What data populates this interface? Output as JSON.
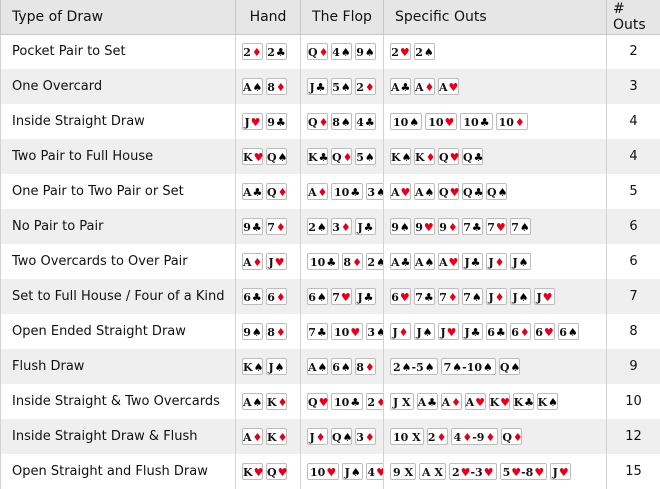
{
  "headers": {
    "draw": "Type of Draw",
    "hand": "Hand",
    "flop": "The Flop",
    "outs": "Specific Outs",
    "count": "# Outs"
  },
  "rows": [
    {
      "draw": "Pocket Pair to Set",
      "hand": [
        "2d",
        "2c"
      ],
      "flop": [
        "Qd",
        "4s",
        "9s"
      ],
      "outs": [
        "2h",
        "2s"
      ],
      "count": "2"
    },
    {
      "draw": "One Overcard",
      "hand": [
        "As",
        "8d"
      ],
      "flop": [
        "Jc",
        "5s",
        "2d"
      ],
      "outs": [
        "Ac",
        "Ad",
        "Ah"
      ],
      "count": "3"
    },
    {
      "draw": "Inside Straight Draw",
      "hand": [
        "Jh",
        "9c"
      ],
      "flop": [
        "Qd",
        "8s",
        "4c"
      ],
      "outs": [
        "10s",
        "10h",
        "10c",
        "10d"
      ],
      "count": "4"
    },
    {
      "draw": "Two Pair to Full House",
      "hand": [
        "Kh",
        "Qs"
      ],
      "flop": [
        "Kc",
        "Qd",
        "5s"
      ],
      "outs": [
        "Ks",
        "Kd",
        "Qh",
        "Qc"
      ],
      "count": "4"
    },
    {
      "draw": "One Pair to Two Pair or Set",
      "hand": [
        "Ac",
        "Qd"
      ],
      "flop": [
        "Ad",
        "10c",
        "3s"
      ],
      "outs": [
        "Ah",
        "As",
        "Qh",
        "Qc",
        "Qs"
      ],
      "count": "5"
    },
    {
      "draw": "No Pair to Pair",
      "hand": [
        "9c",
        "7d"
      ],
      "flop": [
        "2s",
        "3d",
        "Jc"
      ],
      "outs": [
        "9s",
        "9h",
        "9d",
        "7c",
        "7h",
        "7s"
      ],
      "count": "6"
    },
    {
      "draw": "Two Overcards to Over Pair",
      "hand": [
        "Ad",
        "Jh"
      ],
      "flop": [
        "10c",
        "8d",
        "2s"
      ],
      "outs": [
        "Ac",
        "As",
        "Ah",
        "Jc",
        "Jd",
        "Js"
      ],
      "count": "6"
    },
    {
      "draw": "Set to Full House / Four of a Kind",
      "hand": [
        "6c",
        "6d"
      ],
      "flop": [
        "6s",
        "7h",
        "Jc"
      ],
      "outs": [
        "6h",
        "7c",
        "7d",
        "7s",
        "Jd",
        "Js",
        "Jh"
      ],
      "count": "7"
    },
    {
      "draw": "Open Ended Straight Draw",
      "hand": [
        "9s",
        "8d"
      ],
      "flop": [
        "7c",
        "10h",
        "3s"
      ],
      "outs": [
        "Jd",
        "Js",
        "Jh",
        "Jc",
        "6c",
        "6d",
        "6h",
        "6s"
      ],
      "count": "8"
    },
    {
      "draw": "Flush Draw",
      "hand": [
        "Ks",
        "Js"
      ],
      "flop": [
        "As",
        "6s",
        "8d"
      ],
      "outs": [
        "2s-5s",
        "7s-10s",
        "Qs"
      ],
      "count": "9"
    },
    {
      "draw": "Inside Straight & Two Overcards",
      "hand": [
        "As",
        "Kd"
      ],
      "flop": [
        "Qh",
        "10c",
        "2d"
      ],
      "outs": [
        "JX",
        "Ac",
        "Ad",
        "Ah",
        "Kh",
        "Kc",
        "Ks"
      ],
      "count": "10"
    },
    {
      "draw": "Inside Straight Draw & Flush",
      "hand": [
        "Ad",
        "Kd"
      ],
      "flop": [
        "Jd",
        "Qs",
        "3d"
      ],
      "outs": [
        "10X",
        "2d",
        "4d-9d",
        "Qd"
      ],
      "count": "12"
    },
    {
      "draw": "Open Straight and Flush Draw",
      "hand": [
        "Kh",
        "Qh"
      ],
      "flop": [
        "10h",
        "Js",
        "4h"
      ],
      "outs": [
        "9X",
        "AX",
        "2h-3h",
        "5h-8h",
        "Jh"
      ],
      "count": "15"
    }
  ],
  "suit_colors": {
    "red": "#e0001b",
    "black": "#000000"
  }
}
